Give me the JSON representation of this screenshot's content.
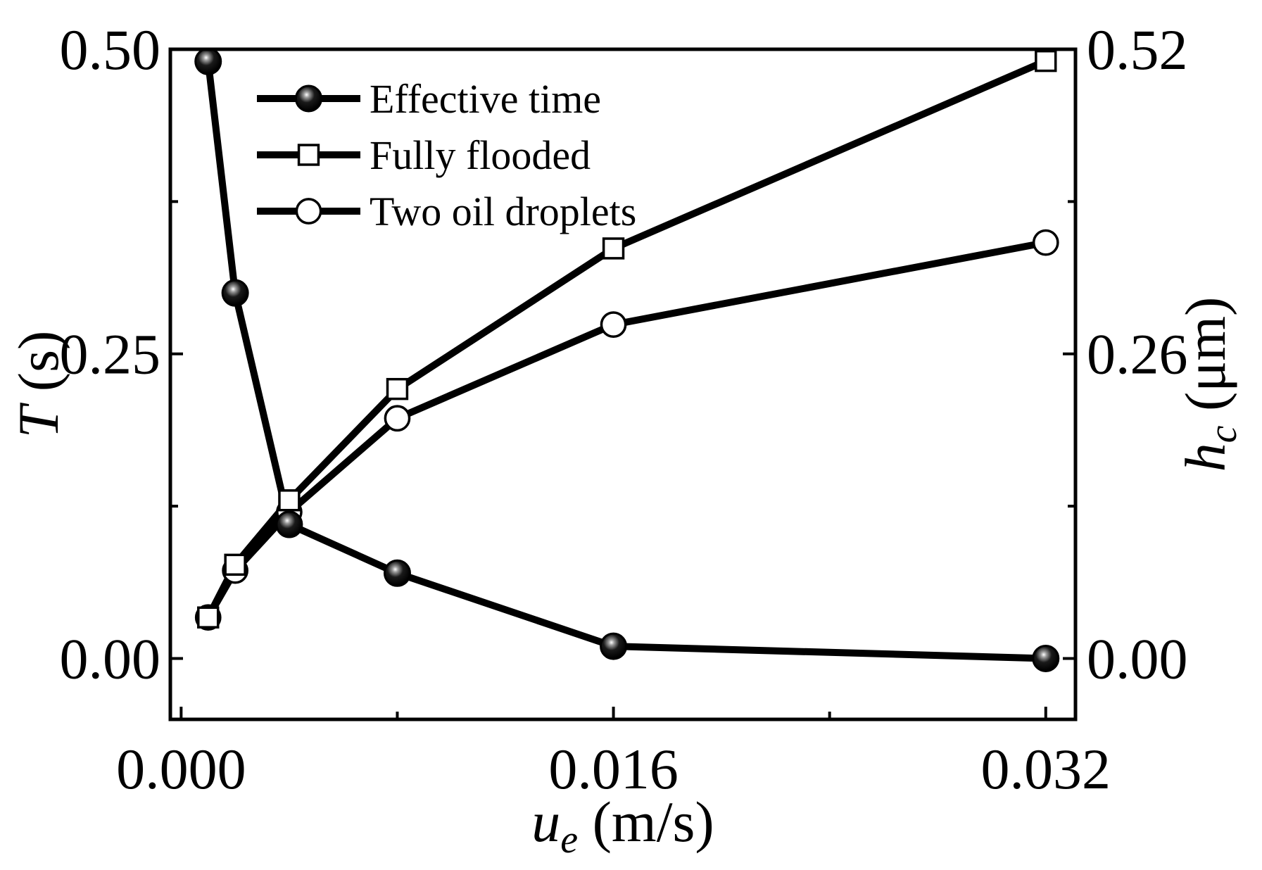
{
  "chart_data": {
    "type": "line",
    "xlabel": {
      "var": "u",
      "sub": "e",
      "unit": " (m/s)"
    },
    "ylabel_left": {
      "var": "T",
      "unit": " (s)"
    },
    "ylabel_right": {
      "var": "h",
      "sub": "c",
      "unit": " (μm)"
    },
    "xlim": [
      -0.0004,
      0.0331
    ],
    "ylim_left": [
      -0.05,
      0.5
    ],
    "ylim_right": [
      -0.052,
      0.52
    ],
    "x_ticks": [
      0.0,
      0.016,
      0.032
    ],
    "x_tick_labels": [
      "0.000",
      "0.016",
      "0.032"
    ],
    "x_minor_ticks": [
      0.008,
      0.024
    ],
    "y_left_ticks": [
      0.0,
      0.25,
      0.5
    ],
    "y_left_tick_labels": [
      "0.00",
      "0.25",
      "0.50"
    ],
    "y_left_minor_ticks": [
      0.125,
      0.375
    ],
    "y_right_ticks": [
      0.0,
      0.26,
      0.52
    ],
    "y_right_tick_labels": [
      "0.00",
      "0.26",
      "0.52"
    ],
    "y_right_minor_ticks": [
      0.13,
      0.39
    ],
    "series": [
      {
        "name": "Effective time",
        "axis": "left",
        "marker": "filled-circle",
        "x": [
          0.001,
          0.002,
          0.004,
          0.008,
          0.016,
          0.032
        ],
        "y": [
          0.49,
          0.3,
          0.11,
          0.07,
          0.01,
          0.0
        ]
      },
      {
        "name": "Fully flooded",
        "axis": "right",
        "marker": "open-square",
        "x": [
          0.001,
          0.002,
          0.004,
          0.008,
          0.016,
          0.032
        ],
        "y": [
          0.035,
          0.08,
          0.135,
          0.23,
          0.35,
          0.51
        ]
      },
      {
        "name": "Two oil droplets",
        "axis": "right",
        "marker": "open-circle",
        "x": [
          0.001,
          0.002,
          0.004,
          0.008,
          0.016,
          0.032
        ],
        "y": [
          0.035,
          0.075,
          0.125,
          0.205,
          0.285,
          0.355
        ]
      }
    ],
    "legend_position": "top-left"
  }
}
